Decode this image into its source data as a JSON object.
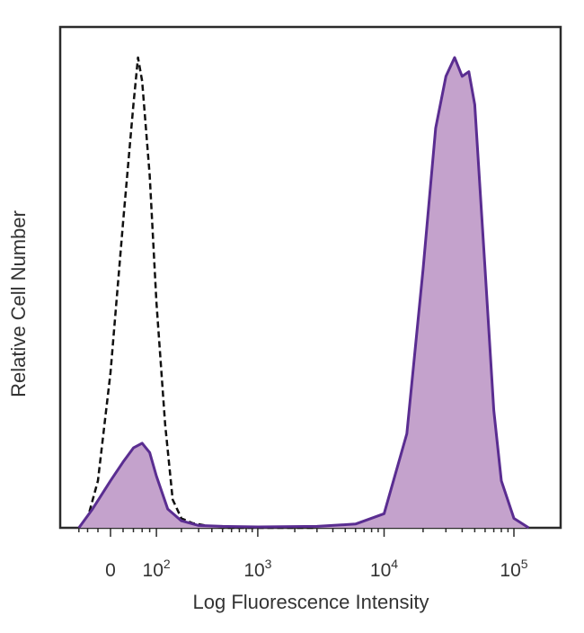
{
  "chart_data": {
    "type": "area",
    "title": "",
    "xlabel": "Log Fluorescence Intensity",
    "ylabel": "Relative Cell Number",
    "x_scale": "biexponential (linear near 0, log above ~100)",
    "x_ticks": [
      {
        "label": "0",
        "value": 0
      },
      {
        "label": "10",
        "exp": "2",
        "value": 100
      },
      {
        "label": "10",
        "exp": "3",
        "value": 1000
      },
      {
        "label": "10",
        "exp": "4",
        "value": 10000
      },
      {
        "label": "10",
        "exp": "5",
        "value": 100000
      }
    ],
    "ylim": [
      0,
      100
    ],
    "grid": false,
    "series": [
      {
        "style": "dashed outline, unfilled",
        "color": "#111111",
        "x": [
          -60,
          -40,
          -20,
          0,
          20,
          40,
          50,
          60,
          80,
          100,
          130,
          160,
          200,
          260,
          350,
          500,
          1000,
          3000
        ],
        "y": [
          0,
          2,
          10,
          33,
          65,
          90,
          100,
          95,
          75,
          48,
          22,
          6,
          2,
          1,
          0.5,
          0,
          0,
          0
        ]
      },
      {
        "style": "solid outline, filled",
        "color": "#5a2d91",
        "fill": "#c4a2cc",
        "x": [
          -60,
          -30,
          0,
          20,
          40,
          60,
          80,
          100,
          140,
          200,
          300,
          500,
          1000,
          3000,
          6000,
          10000,
          15000,
          20000,
          25000,
          30000,
          35000,
          40000,
          45000,
          50000,
          60000,
          70000,
          80000,
          100000,
          130000
        ],
        "y": [
          0,
          4,
          10,
          14,
          17,
          18,
          16,
          11,
          4,
          1.5,
          0.5,
          0.3,
          0.2,
          0.3,
          0.8,
          3,
          20,
          55,
          85,
          96,
          100,
          96,
          97,
          90,
          55,
          25,
          10,
          2,
          0
        ]
      }
    ]
  }
}
